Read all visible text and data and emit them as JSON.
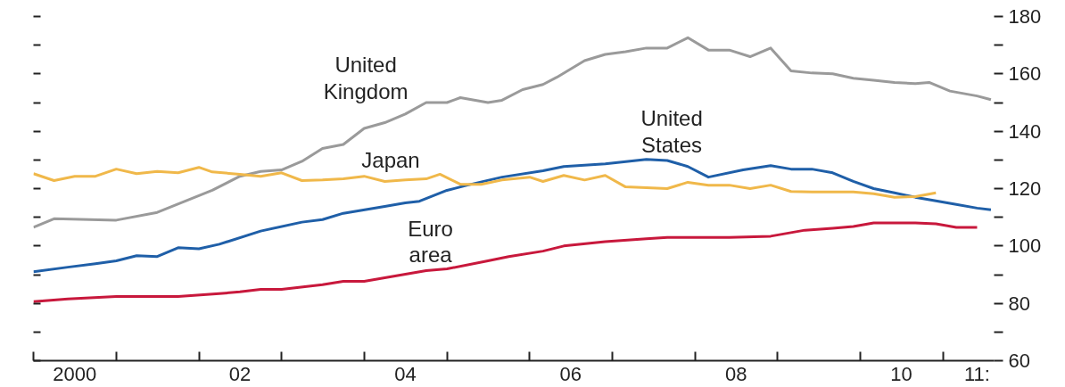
{
  "chart_data": {
    "type": "line",
    "xlim": [
      "2000-01",
      "2011-08-15"
    ],
    "xticks": [
      {
        "value": "2000-01",
        "label": null
      },
      {
        "value": "2000-07",
        "label": "2000"
      },
      {
        "value": "2001-01",
        "label": null
      },
      {
        "value": "2002-01",
        "label": null
      },
      {
        "value": "2002-07",
        "label": "02"
      },
      {
        "value": "2003-01",
        "label": null
      },
      {
        "value": "2004-01",
        "label": null
      },
      {
        "value": "2004-07",
        "label": "04"
      },
      {
        "value": "2005-01",
        "label": null
      },
      {
        "value": "2006-01",
        "label": null
      },
      {
        "value": "2006-07",
        "label": "06"
      },
      {
        "value": "2007-01",
        "label": null
      },
      {
        "value": "2008-01",
        "label": null
      },
      {
        "value": "2008-07",
        "label": "08"
      },
      {
        "value": "2009-01",
        "label": null
      },
      {
        "value": "2010-01",
        "label": null
      },
      {
        "value": "2010-07",
        "label": "10"
      },
      {
        "value": "2011-01",
        "label": null
      },
      {
        "value": "2011-06",
        "label": "11:"
      }
    ],
    "ylim": [
      60,
      180
    ],
    "yticks": [
      60,
      {
        "value": 70,
        "label": null
      },
      80,
      {
        "value": 90,
        "label": null
      },
      100,
      {
        "value": 110,
        "label": null
      },
      120,
      {
        "value": 130,
        "label": null
      },
      140,
      {
        "value": 150,
        "label": null
      },
      160,
      {
        "value": 170,
        "label": null
      },
      180
    ],
    "marker": "none",
    "line_style": "solid",
    "series": [
      {
        "name": "United Kingdom",
        "color": "#9a9a9a",
        "x": [
          "2000-01",
          "2000-04",
          "2001-01",
          "2001-07",
          "2002-03",
          "2002-07",
          "2002-10",
          "2003-01",
          "2003-04",
          "2003-07",
          "2003-10",
          "2004-01",
          "2004-04",
          "2004-07",
          "2004-10",
          "2005-01",
          "2005-03",
          "2005-07",
          "2005-09",
          "2005-12",
          "2006-03",
          "2006-05",
          "2006-09",
          "2006-12",
          "2007-03",
          "2007-06",
          "2007-09",
          "2007-12",
          "2008-03",
          "2008-06",
          "2008-09",
          "2008-12",
          "2009-03",
          "2009-06",
          "2009-09",
          "2009-12",
          "2010-03",
          "2010-06",
          "2010-09",
          "2010-11",
          "2011-02",
          "2011-06",
          "2011-08"
        ],
        "values": [
          106.5,
          109.5,
          109,
          111.7,
          119.4,
          124.3,
          126,
          126.5,
          129.5,
          134,
          135.4,
          141,
          143,
          146,
          150,
          150,
          151.7,
          150,
          150.8,
          154.5,
          156.3,
          158.8,
          164.6,
          166.8,
          167.7,
          169,
          169,
          172.6,
          168.3,
          168.3,
          166,
          169,
          161,
          160.3,
          160,
          158.5,
          157.8,
          157,
          156.6,
          157,
          154,
          152.3,
          151
        ]
      },
      {
        "name": "United States",
        "color": "#1f5fa8",
        "x": [
          "2000-01",
          "2000-06",
          "2000-10",
          "2001-01",
          "2001-04",
          "2001-07",
          "2001-10",
          "2002-01",
          "2002-04",
          "2002-10",
          "2003-04",
          "2003-07",
          "2003-10",
          "2004-04",
          "2004-07",
          "2004-09",
          "2005-01",
          "2005-04",
          "2005-09",
          "2006-03",
          "2006-06",
          "2006-12",
          "2007-06",
          "2007-09",
          "2007-12",
          "2008-03",
          "2008-08",
          "2008-12",
          "2009-03",
          "2009-06",
          "2009-09",
          "2009-12",
          "2010-03",
          "2010-06",
          "2010-09",
          "2010-12",
          "2011-03",
          "2011-06",
          "2011-08"
        ],
        "values": [
          91,
          92.6,
          93.8,
          94.8,
          96.6,
          96.3,
          99.4,
          99,
          100.6,
          105.2,
          108.3,
          109.2,
          111.4,
          113.8,
          115,
          115.6,
          119.4,
          121.2,
          124,
          126.2,
          127.7,
          128.6,
          130.2,
          129.8,
          127.7,
          124,
          126.5,
          128,
          126.8,
          126.8,
          125.5,
          122.5,
          120,
          118.5,
          117,
          115.7,
          114.5,
          113.2,
          112.6
        ]
      },
      {
        "name": "Japan",
        "color": "#f0b84a",
        "x": [
          "2000-01",
          "2000-04",
          "2000-07",
          "2000-10",
          "2001-01",
          "2001-04",
          "2001-07",
          "2001-10",
          "2002-01",
          "2002-03",
          "2002-07",
          "2002-10",
          "2003-01",
          "2003-04",
          "2003-07",
          "2003-10",
          "2004-01",
          "2004-04",
          "2004-07",
          "2004-10",
          "2004-12",
          "2005-03",
          "2005-06",
          "2005-09",
          "2006-01",
          "2006-03",
          "2006-06",
          "2006-09",
          "2006-12",
          "2007-03",
          "2007-06",
          "2007-09",
          "2007-12",
          "2008-03",
          "2008-06",
          "2008-09",
          "2008-12",
          "2009-03",
          "2009-06",
          "2009-09",
          "2009-12",
          "2010-03",
          "2010-06",
          "2010-09",
          "2010-12"
        ],
        "values": [
          125.2,
          122.8,
          124.3,
          124.3,
          126.8,
          125.2,
          126,
          125.5,
          127.4,
          125.8,
          125,
          124.3,
          125.5,
          122.8,
          123,
          123.4,
          124.3,
          122.5,
          123,
          123.4,
          125,
          121.5,
          121.5,
          123,
          124,
          122.5,
          124.6,
          123,
          124.6,
          120.6,
          120.3,
          120,
          122.2,
          121.2,
          121.2,
          120,
          121.2,
          119,
          118.8,
          118.8,
          118.8,
          118.2,
          117,
          117.2,
          118.5
        ]
      },
      {
        "name": "Euro area",
        "color": "#c8183c",
        "x": [
          "2000-01",
          "2000-06",
          "2001-01",
          "2001-10",
          "2002-04",
          "2002-07",
          "2002-10",
          "2003-01",
          "2003-07",
          "2003-10",
          "2004-01",
          "2004-04",
          "2004-10",
          "2005-01",
          "2005-07",
          "2005-10",
          "2006-03",
          "2006-06",
          "2006-12",
          "2007-06",
          "2007-09",
          "2008-06",
          "2008-12",
          "2009-05",
          "2009-09",
          "2009-12",
          "2010-03",
          "2010-09",
          "2010-12",
          "2011-03",
          "2011-06"
        ],
        "values": [
          80.6,
          81.5,
          82.4,
          82.4,
          83.4,
          84,
          84.9,
          84.9,
          86.5,
          87.7,
          87.7,
          88.9,
          91.4,
          92,
          94.8,
          96.3,
          98.2,
          100,
          101.5,
          102.5,
          103,
          103,
          103.4,
          105.5,
          106.2,
          106.8,
          108,
          108,
          107.7,
          106.5,
          106.5
        ]
      }
    ]
  }
}
